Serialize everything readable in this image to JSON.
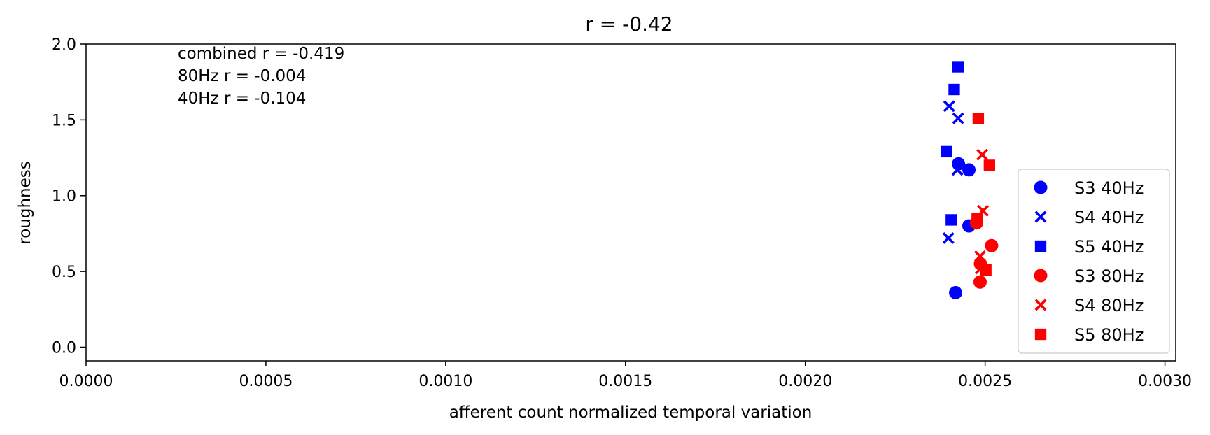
{
  "chart_data": {
    "type": "scatter",
    "title": "r = -0.42",
    "xlabel": "afferent count normalized temporal variation",
    "ylabel": "roughness",
    "xlim": [
      0.0,
      0.00303
    ],
    "ylim": [
      -0.09,
      2.0
    ],
    "xticks": [
      0.0,
      0.0005,
      0.001,
      0.0015,
      0.002,
      0.0025,
      0.003
    ],
    "xtick_labels": [
      "0.0000",
      "0.0005",
      "0.0010",
      "0.0015",
      "0.0020",
      "0.0025",
      "0.0030"
    ],
    "yticks": [
      0.0,
      0.5,
      1.0,
      1.5,
      2.0
    ],
    "ytick_labels": [
      "0.0",
      "0.5",
      "1.0",
      "1.5",
      "2.0"
    ],
    "grid": false,
    "legend_position": "lower-right",
    "annotations": [
      "combined r = -0.419",
      "80Hz r = -0.004",
      "40Hz r = -0.104"
    ],
    "series": [
      {
        "name": "S3 40Hz",
        "marker": "circle",
        "color": "#0000ff",
        "points": [
          [
            0.002418,
            0.36
          ],
          [
            0.002426,
            1.21
          ],
          [
            0.002455,
            1.17
          ],
          [
            0.002455,
            0.8
          ]
        ]
      },
      {
        "name": "S4 40Hz",
        "marker": "x",
        "color": "#0000ff",
        "points": [
          [
            0.0024,
            1.59
          ],
          [
            0.002425,
            1.51
          ],
          [
            0.002423,
            1.17
          ],
          [
            0.002398,
            0.72
          ]
        ]
      },
      {
        "name": "S5 40Hz",
        "marker": "square",
        "color": "#0000ff",
        "points": [
          [
            0.002425,
            1.85
          ],
          [
            0.002414,
            1.7
          ],
          [
            0.002392,
            1.29
          ],
          [
            0.002406,
            0.84
          ]
        ]
      },
      {
        "name": "S3 80Hz",
        "marker": "circle",
        "color": "#ff0000",
        "points": [
          [
            0.002476,
            0.82
          ],
          [
            0.002487,
            0.55
          ],
          [
            0.002486,
            0.43
          ],
          [
            0.002518,
            0.67
          ]
        ]
      },
      {
        "name": "S4 80Hz",
        "marker": "x",
        "color": "#ff0000",
        "points": [
          [
            0.002492,
            1.27
          ],
          [
            0.002494,
            0.9
          ],
          [
            0.002486,
            0.6
          ],
          [
            0.002488,
            0.52
          ]
        ]
      },
      {
        "name": "S5 80Hz",
        "marker": "square",
        "color": "#ff0000",
        "points": [
          [
            0.002481,
            1.51
          ],
          [
            0.002512,
            1.2
          ],
          [
            0.002478,
            0.85
          ],
          [
            0.002502,
            0.51
          ]
        ]
      }
    ]
  }
}
